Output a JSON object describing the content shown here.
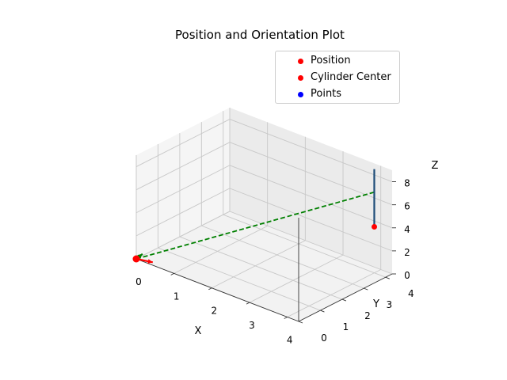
{
  "chart_data": {
    "type": "scatter",
    "title": "Position and Orientation Plot",
    "xlabel": "X",
    "ylabel": "Y",
    "zlabel": "Z",
    "x_ticks": [
      "0",
      "1",
      "2",
      "3",
      "4"
    ],
    "y_ticks": [
      "0",
      "1",
      "2",
      "3",
      "4"
    ],
    "z_ticks": [
      "0",
      "2",
      "4",
      "6",
      "8"
    ],
    "xlim": [
      0,
      4.3
    ],
    "ylim": [
      0,
      4.3
    ],
    "zlim": [
      0,
      9
    ],
    "legend_position": "upper-right",
    "series": [
      {
        "name": "Position",
        "color": "#ff0000",
        "points": [
          {
            "x": 0,
            "y": 0,
            "z": 0
          }
        ]
      },
      {
        "name": "Cylinder Center",
        "color": "#ff0000",
        "points": [
          {
            "x": 4,
            "y": 4,
            "z": 4
          }
        ]
      },
      {
        "name": "Points",
        "color": "#0000ff",
        "points": []
      }
    ],
    "lines": [
      {
        "kind": "dashed",
        "color": "#008000",
        "from": {
          "x": 0,
          "y": 0,
          "z": 0
        },
        "to": {
          "x": 4,
          "y": 4,
          "z": 7
        }
      },
      {
        "kind": "solid",
        "color": "#1f4e79",
        "from": {
          "x": 4,
          "y": 4,
          "z": 4
        },
        "to": {
          "x": 4,
          "y": 4,
          "z": 9
        }
      }
    ],
    "orientation_axes": [
      {
        "color": "#ff0000",
        "dir": {
          "x": 0.35,
          "y": 0.15,
          "z": 0
        }
      },
      {
        "color": "#008000",
        "dir": {
          "x": 0.05,
          "y": 0.2,
          "z": 0.3
        }
      },
      {
        "color": "#0000ff",
        "dir": {
          "x": 0.05,
          "y": -0.05,
          "z": 0.35
        }
      }
    ]
  }
}
